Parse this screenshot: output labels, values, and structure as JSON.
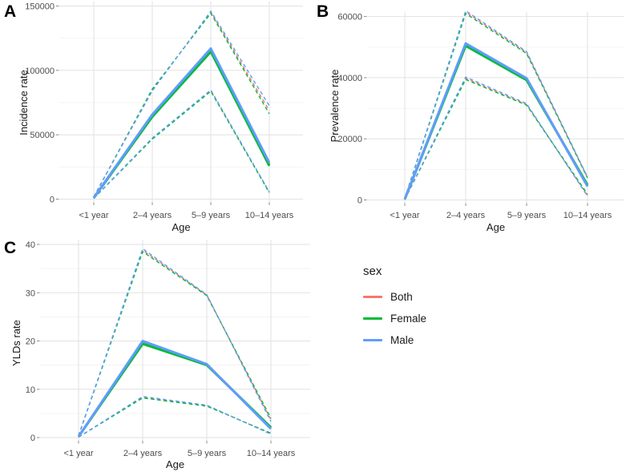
{
  "legend": {
    "title": "sex",
    "items": [
      {
        "label": "Both",
        "color": "#F8766D"
      },
      {
        "label": "Female",
        "color": "#00BA38"
      },
      {
        "label": "Male",
        "color": "#619CFF"
      }
    ]
  },
  "chart_data": [
    {
      "panel_label": "A",
      "type": "line",
      "xlabel": "Age",
      "ylabel": "Incidence rate",
      "categories": [
        "<1 year",
        "2–4 years",
        "5–9 years",
        "10–14 years"
      ],
      "ylim": [
        0,
        150000
      ],
      "yticks": [
        0,
        50000,
        100000,
        150000
      ],
      "grid": "horizontal major+minor, vertical at categories",
      "legend_position": "shared right-bottom",
      "series": [
        {
          "sex": "Both",
          "bound": "upper",
          "line": "dashed",
          "color": "#F8766D",
          "values": [
            1800,
            84800,
            145200,
            68800
          ]
        },
        {
          "sex": "Female",
          "bound": "upper",
          "line": "dashed",
          "color": "#00BA38",
          "values": [
            1700,
            85500,
            144400,
            66300
          ]
        },
        {
          "sex": "Male",
          "bound": "upper",
          "line": "dashed",
          "color": "#619CFF",
          "values": [
            1900,
            84000,
            146000,
            72500
          ]
        },
        {
          "sex": "Both",
          "bound": "lower",
          "line": "dashed",
          "color": "#F8766D",
          "values": [
            600,
            47000,
            84300,
            5300
          ]
        },
        {
          "sex": "Female",
          "bound": "lower",
          "line": "dashed",
          "color": "#00BA38",
          "values": [
            550,
            46600,
            83800,
            5000
          ]
        },
        {
          "sex": "Male",
          "bound": "lower",
          "line": "dashed",
          "color": "#619CFF",
          "values": [
            650,
            47500,
            84800,
            5600
          ]
        },
        {
          "sex": "Both",
          "bound": "mean",
          "line": "solid",
          "color": "#F8766D",
          "values": [
            1000,
            64800,
            115800,
            26800
          ]
        },
        {
          "sex": "Female",
          "bound": "mean",
          "line": "solid",
          "color": "#00BA38",
          "values": [
            950,
            64000,
            114500,
            25800
          ]
        },
        {
          "sex": "Male",
          "bound": "mean",
          "line": "solid",
          "color": "#619CFF",
          "values": [
            1100,
            65700,
            117000,
            28300
          ]
        }
      ]
    },
    {
      "panel_label": "B",
      "type": "line",
      "xlabel": "Age",
      "ylabel": "Prevalence rate",
      "categories": [
        "<1 year",
        "2–4 years",
        "5–9 years",
        "10–14 years"
      ],
      "ylim": [
        0,
        60000
      ],
      "yticks": [
        0,
        20000,
        40000,
        60000
      ],
      "grid": "horizontal major+minor, vertical at categories",
      "legend_position": "shared right-bottom",
      "series": [
        {
          "sex": "Both",
          "bound": "upper",
          "line": "dashed",
          "color": "#F8766D",
          "values": [
            500,
            61500,
            48200,
            7300
          ]
        },
        {
          "sex": "Female",
          "bound": "upper",
          "line": "dashed",
          "color": "#00BA38",
          "values": [
            480,
            61000,
            47900,
            7200
          ]
        },
        {
          "sex": "Male",
          "bound": "upper",
          "line": "dashed",
          "color": "#619CFF",
          "values": [
            520,
            61900,
            48500,
            7500
          ]
        },
        {
          "sex": "Both",
          "bound": "lower",
          "line": "dashed",
          "color": "#F8766D",
          "values": [
            150,
            39800,
            31200,
            1500
          ]
        },
        {
          "sex": "Female",
          "bound": "lower",
          "line": "dashed",
          "color": "#00BA38",
          "values": [
            140,
            39400,
            31000,
            1900
          ]
        },
        {
          "sex": "Male",
          "bound": "lower",
          "line": "dashed",
          "color": "#619CFF",
          "values": [
            160,
            40200,
            31500,
            1200
          ]
        },
        {
          "sex": "Both",
          "bound": "mean",
          "line": "solid",
          "color": "#F8766D",
          "values": [
            250,
            50800,
            39500,
            4600
          ]
        },
        {
          "sex": "Female",
          "bound": "mean",
          "line": "solid",
          "color": "#00BA38",
          "values": [
            240,
            50400,
            39200,
            4900
          ]
        },
        {
          "sex": "Male",
          "bound": "mean",
          "line": "solid",
          "color": "#619CFF",
          "values": [
            260,
            51200,
            39800,
            4400
          ]
        }
      ]
    },
    {
      "panel_label": "C",
      "type": "line",
      "xlabel": "Age",
      "ylabel": "YLDs rate",
      "categories": [
        "<1 year",
        "2–4 years",
        "5–9 years",
        "10–14 years"
      ],
      "ylim": [
        0,
        40
      ],
      "yticks": [
        0,
        10,
        20,
        30,
        40
      ],
      "grid": "horizontal major+minor, vertical at categories",
      "legend_position": "shared right-bottom",
      "series": [
        {
          "sex": "Both",
          "bound": "upper",
          "line": "dashed",
          "color": "#F8766D",
          "values": [
            0.4,
            38.8,
            29.5,
            3.7
          ]
        },
        {
          "sex": "Female",
          "bound": "upper",
          "line": "dashed",
          "color": "#00BA38",
          "values": [
            0.4,
            38.5,
            29.4,
            4.0
          ]
        },
        {
          "sex": "Male",
          "bound": "upper",
          "line": "dashed",
          "color": "#619CFF",
          "values": [
            0.4,
            39.1,
            29.6,
            3.3
          ]
        },
        {
          "sex": "Both",
          "bound": "lower",
          "line": "dashed",
          "color": "#F8766D",
          "values": [
            0.1,
            8.3,
            6.6,
            0.8
          ]
        },
        {
          "sex": "Female",
          "bound": "lower",
          "line": "dashed",
          "color": "#00BA38",
          "values": [
            0.1,
            8.2,
            6.5,
            0.9
          ]
        },
        {
          "sex": "Male",
          "bound": "lower",
          "line": "dashed",
          "color": "#619CFF",
          "values": [
            0.1,
            8.5,
            6.7,
            0.7
          ]
        },
        {
          "sex": "Both",
          "bound": "mean",
          "line": "solid",
          "color": "#F8766D",
          "values": [
            0.2,
            19.7,
            15.1,
            2.0
          ]
        },
        {
          "sex": "Female",
          "bound": "mean",
          "line": "solid",
          "color": "#00BA38",
          "values": [
            0.2,
            19.4,
            15.0,
            2.1
          ]
        },
        {
          "sex": "Male",
          "bound": "mean",
          "line": "solid",
          "color": "#619CFF",
          "values": [
            0.2,
            20.0,
            15.2,
            1.8
          ]
        }
      ]
    }
  ]
}
